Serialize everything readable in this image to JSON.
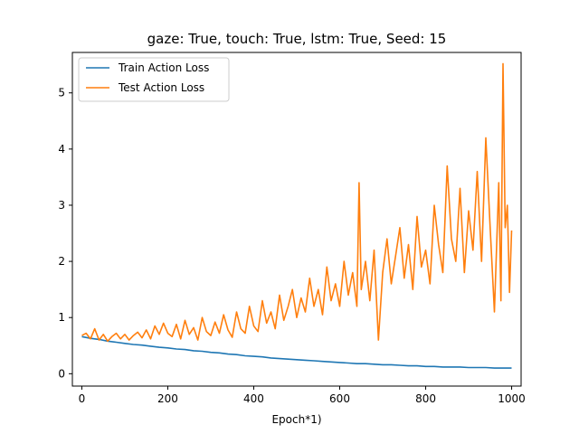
{
  "chart_data": {
    "type": "line",
    "title": "gaze: True, touch: True, lstm: True, Seed: 15",
    "xlabel": "Epoch*1)",
    "ylabel": "",
    "xlim": [
      -22,
      1022
    ],
    "ylim": [
      -0.22,
      5.72
    ],
    "xticks": [
      0,
      200,
      400,
      600,
      800,
      1000
    ],
    "yticks": [
      0,
      1,
      2,
      3,
      4,
      5
    ],
    "grid": false,
    "legend_position": "upper-left",
    "series": [
      {
        "name": "Train Action Loss",
        "color": "#1f77b4",
        "x": [
          0,
          20,
          40,
          60,
          80,
          100,
          120,
          140,
          160,
          180,
          200,
          220,
          240,
          260,
          280,
          300,
          320,
          340,
          360,
          380,
          400,
          420,
          440,
          460,
          480,
          500,
          520,
          540,
          560,
          580,
          600,
          620,
          640,
          660,
          680,
          700,
          720,
          740,
          760,
          780,
          800,
          820,
          840,
          860,
          880,
          900,
          920,
          940,
          960,
          980,
          1000
        ],
        "values": [
          0.66,
          0.63,
          0.61,
          0.58,
          0.56,
          0.54,
          0.52,
          0.51,
          0.49,
          0.47,
          0.46,
          0.44,
          0.43,
          0.41,
          0.4,
          0.38,
          0.37,
          0.35,
          0.34,
          0.32,
          0.31,
          0.3,
          0.28,
          0.27,
          0.26,
          0.25,
          0.24,
          0.23,
          0.22,
          0.21,
          0.2,
          0.19,
          0.18,
          0.18,
          0.17,
          0.16,
          0.16,
          0.15,
          0.14,
          0.14,
          0.13,
          0.13,
          0.12,
          0.12,
          0.12,
          0.11,
          0.11,
          0.11,
          0.1,
          0.1,
          0.1
        ]
      },
      {
        "name": "Test Action Loss",
        "color": "#ff7f0e",
        "x": [
          0,
          10,
          20,
          30,
          40,
          50,
          60,
          70,
          80,
          90,
          100,
          110,
          120,
          130,
          140,
          150,
          160,
          170,
          180,
          190,
          200,
          210,
          220,
          230,
          240,
          250,
          260,
          270,
          280,
          290,
          300,
          310,
          320,
          330,
          340,
          350,
          360,
          370,
          380,
          390,
          400,
          410,
          420,
          430,
          440,
          450,
          460,
          470,
          480,
          490,
          500,
          510,
          520,
          530,
          540,
          550,
          560,
          570,
          580,
          590,
          600,
          610,
          620,
          630,
          640,
          645,
          650,
          660,
          670,
          680,
          690,
          700,
          710,
          720,
          730,
          740,
          750,
          760,
          770,
          780,
          790,
          800,
          810,
          820,
          830,
          840,
          850,
          860,
          870,
          880,
          890,
          900,
          910,
          920,
          930,
          940,
          950,
          960,
          970,
          975,
          980,
          985,
          990,
          995,
          1000
        ],
        "values": [
          0.68,
          0.72,
          0.62,
          0.8,
          0.6,
          0.7,
          0.58,
          0.66,
          0.72,
          0.62,
          0.7,
          0.6,
          0.68,
          0.74,
          0.64,
          0.78,
          0.62,
          0.85,
          0.7,
          0.9,
          0.72,
          0.66,
          0.88,
          0.62,
          0.95,
          0.7,
          0.82,
          0.6,
          1.0,
          0.75,
          0.68,
          0.92,
          0.72,
          1.05,
          0.78,
          0.65,
          1.1,
          0.8,
          0.72,
          1.2,
          0.85,
          0.75,
          1.3,
          0.9,
          1.1,
          0.8,
          1.4,
          0.95,
          1.2,
          1.5,
          1.0,
          1.35,
          1.1,
          1.7,
          1.2,
          1.5,
          1.05,
          1.9,
          1.3,
          1.6,
          1.2,
          2.0,
          1.4,
          1.8,
          1.2,
          3.4,
          1.5,
          2.0,
          1.3,
          2.2,
          0.6,
          1.8,
          2.4,
          1.6,
          2.1,
          2.6,
          1.7,
          2.3,
          1.5,
          2.8,
          1.9,
          2.2,
          1.6,
          3.0,
          2.3,
          1.8,
          3.7,
          2.4,
          2.0,
          3.3,
          1.8,
          2.9,
          2.2,
          3.6,
          2.0,
          4.2,
          2.6,
          1.1,
          3.4,
          1.3,
          5.52,
          2.6,
          3.0,
          1.45,
          2.55
        ]
      }
    ]
  }
}
